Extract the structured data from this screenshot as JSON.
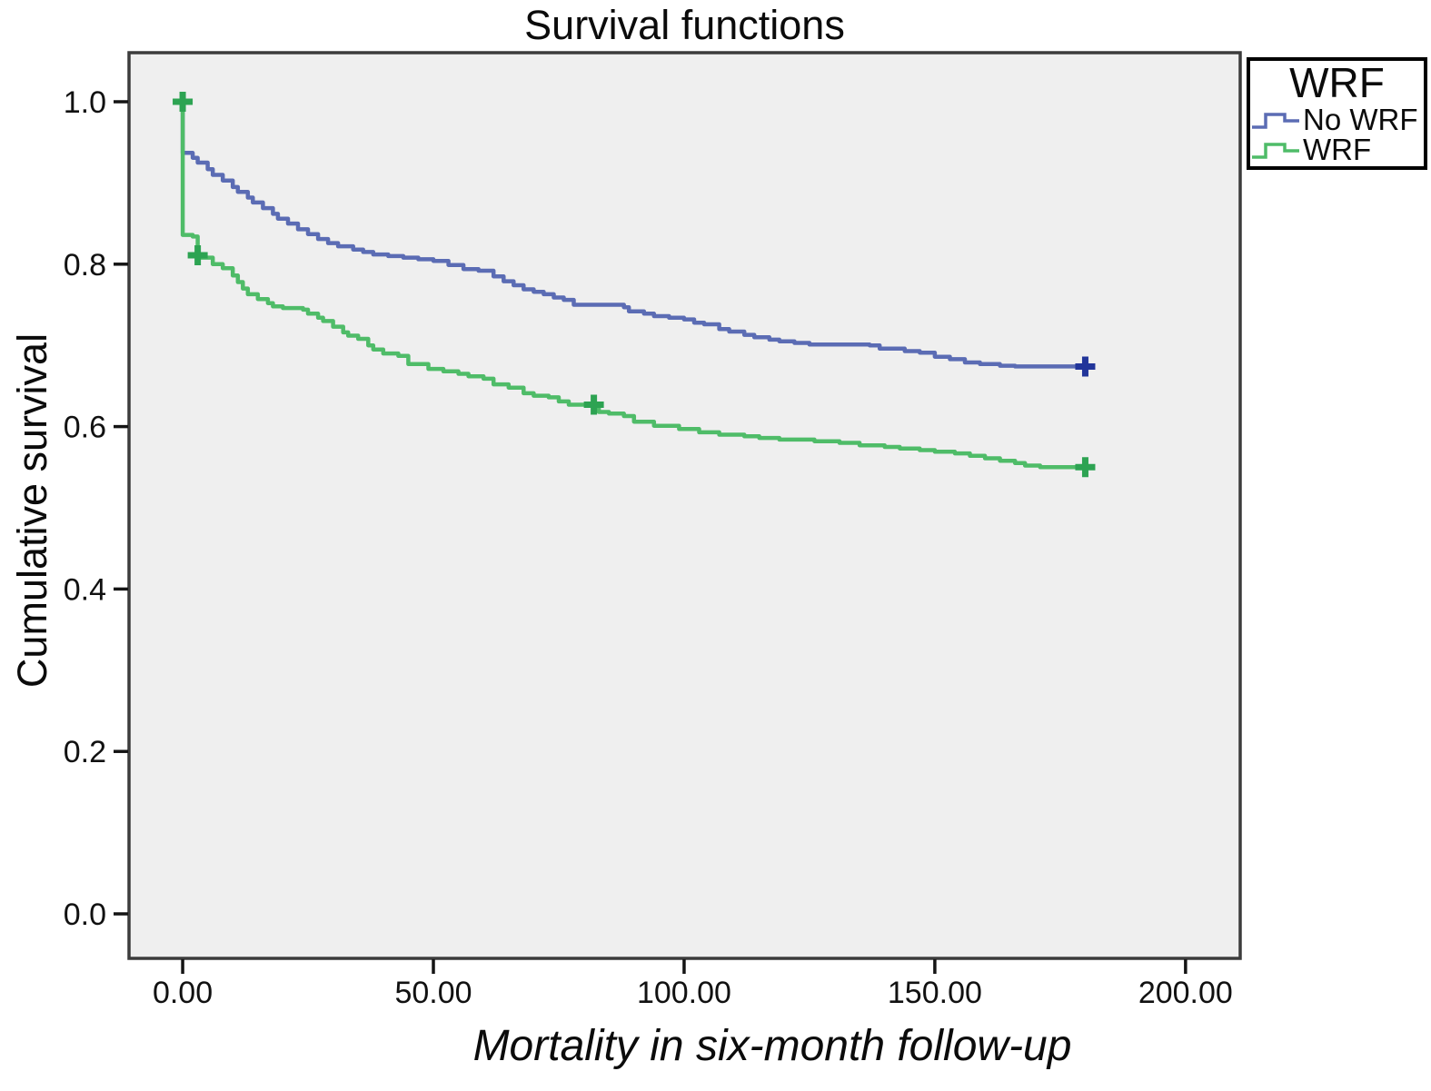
{
  "page": {
    "background": "#ffffff"
  },
  "chart_data": {
    "type": "line",
    "subtype": "kaplan-meier-step-survival",
    "title": "Survival functions",
    "xlabel": "Mortality in six-month follow-up",
    "ylabel": "Cumulative survival",
    "xlim": [
      -10.7,
      210.9
    ],
    "ylim": [
      -0.0548,
      1.0604
    ],
    "grid": false,
    "plot_background": "#efefef",
    "frame_color": "#3c3c3c",
    "tick_color": "#141414",
    "censor_marker": "+",
    "xticks": [
      {
        "value": 0,
        "label": "0.00"
      },
      {
        "value": 50,
        "label": "50.00"
      },
      {
        "value": 100,
        "label": "100.00"
      },
      {
        "value": 150,
        "label": "150.00"
      },
      {
        "value": 200,
        "label": "200.00"
      }
    ],
    "yticks": [
      {
        "value": 0.0,
        "label": "0.0"
      },
      {
        "value": 0.2,
        "label": "0.2"
      },
      {
        "value": 0.4,
        "label": "0.4"
      },
      {
        "value": 0.6,
        "label": "0.6"
      },
      {
        "value": 0.8,
        "label": "0.8"
      },
      {
        "value": 1.0,
        "label": "1.0"
      }
    ],
    "legend": {
      "title": "WRF",
      "position": "top-right-outside",
      "entries": [
        {
          "label": "No WRF",
          "color": "#5b6cb4"
        },
        {
          "label": "WRF",
          "color": "#4fbc68"
        }
      ]
    },
    "series": [
      {
        "name": "No WRF",
        "color": "#5b6cb4",
        "censor_color": "#22359a",
        "points": [
          [
            0,
            1.0
          ],
          [
            0,
            0.937
          ],
          [
            2,
            0.931
          ],
          [
            3,
            0.925
          ],
          [
            5,
            0.917
          ],
          [
            6,
            0.91
          ],
          [
            8,
            0.903
          ],
          [
            10,
            0.895
          ],
          [
            11,
            0.889
          ],
          [
            13,
            0.882
          ],
          [
            14,
            0.876
          ],
          [
            16,
            0.869
          ],
          [
            18,
            0.862
          ],
          [
            19,
            0.856
          ],
          [
            21,
            0.85
          ],
          [
            23,
            0.843
          ],
          [
            25,
            0.837
          ],
          [
            27,
            0.831
          ],
          [
            29,
            0.826
          ],
          [
            31,
            0.822
          ],
          [
            34,
            0.818
          ],
          [
            36,
            0.815
          ],
          [
            38,
            0.812
          ],
          [
            41,
            0.81
          ],
          [
            44,
            0.808
          ],
          [
            47,
            0.806
          ],
          [
            50,
            0.804
          ],
          [
            53,
            0.799
          ],
          [
            56,
            0.794
          ],
          [
            59,
            0.792
          ],
          [
            62,
            0.785
          ],
          [
            64,
            0.779
          ],
          [
            66,
            0.774
          ],
          [
            68,
            0.769
          ],
          [
            70,
            0.766
          ],
          [
            72,
            0.763
          ],
          [
            74,
            0.759
          ],
          [
            76,
            0.756
          ],
          [
            78,
            0.75
          ],
          [
            88,
            0.747
          ],
          [
            89,
            0.742
          ],
          [
            92,
            0.739
          ],
          [
            94,
            0.736
          ],
          [
            97,
            0.734
          ],
          [
            100,
            0.732
          ],
          [
            102,
            0.728
          ],
          [
            104,
            0.726
          ],
          [
            107,
            0.72
          ],
          [
            109,
            0.717
          ],
          [
            112,
            0.713
          ],
          [
            114,
            0.71
          ],
          [
            117,
            0.707
          ],
          [
            119,
            0.705
          ],
          [
            122,
            0.703
          ],
          [
            125,
            0.701
          ],
          [
            137,
            0.7
          ],
          [
            139,
            0.696
          ],
          [
            144,
            0.693
          ],
          [
            147,
            0.691
          ],
          [
            150,
            0.686
          ],
          [
            153,
            0.683
          ],
          [
            156,
            0.679
          ],
          [
            159,
            0.677
          ],
          [
            163,
            0.675
          ],
          [
            166,
            0.674
          ],
          [
            180,
            0.674
          ]
        ],
        "censors": [
          [
            180,
            0.674
          ]
        ]
      },
      {
        "name": "WRF",
        "color": "#4fbc68",
        "censor_color": "#2da352",
        "points": [
          [
            0,
            1.0
          ],
          [
            0,
            0.836
          ],
          [
            2,
            0.834
          ],
          [
            3,
            0.808
          ],
          [
            6,
            0.8
          ],
          [
            8,
            0.795
          ],
          [
            10,
            0.786
          ],
          [
            11,
            0.778
          ],
          [
            12,
            0.77
          ],
          [
            13,
            0.763
          ],
          [
            15,
            0.757
          ],
          [
            17,
            0.752
          ],
          [
            18,
            0.748
          ],
          [
            20,
            0.746
          ],
          [
            24,
            0.744
          ],
          [
            25,
            0.739
          ],
          [
            27,
            0.734
          ],
          [
            28,
            0.73
          ],
          [
            30,
            0.723
          ],
          [
            32,
            0.716
          ],
          [
            33,
            0.712
          ],
          [
            35,
            0.708
          ],
          [
            37,
            0.7
          ],
          [
            38,
            0.695
          ],
          [
            40,
            0.69
          ],
          [
            43,
            0.687
          ],
          [
            45,
            0.677
          ],
          [
            49,
            0.671
          ],
          [
            52,
            0.668
          ],
          [
            55,
            0.665
          ],
          [
            57,
            0.662
          ],
          [
            60,
            0.659
          ],
          [
            62,
            0.652
          ],
          [
            65,
            0.648
          ],
          [
            68,
            0.641
          ],
          [
            70,
            0.638
          ],
          [
            73,
            0.636
          ],
          [
            75,
            0.631
          ],
          [
            77,
            0.627
          ],
          [
            83,
            0.618
          ],
          [
            85,
            0.616
          ],
          [
            88,
            0.613
          ],
          [
            90,
            0.606
          ],
          [
            94,
            0.601
          ],
          [
            99,
            0.597
          ],
          [
            103,
            0.593
          ],
          [
            107,
            0.59
          ],
          [
            112,
            0.588
          ],
          [
            115,
            0.586
          ],
          [
            119,
            0.584
          ],
          [
            126,
            0.582
          ],
          [
            131,
            0.58
          ],
          [
            135,
            0.577
          ],
          [
            140,
            0.575
          ],
          [
            143,
            0.573
          ],
          [
            147,
            0.571
          ],
          [
            150,
            0.569
          ],
          [
            154,
            0.567
          ],
          [
            157,
            0.564
          ],
          [
            160,
            0.561
          ],
          [
            163,
            0.558
          ],
          [
            166,
            0.555
          ],
          [
            168,
            0.552
          ],
          [
            171,
            0.55
          ],
          [
            180,
            0.55
          ]
        ],
        "censors": [
          [
            0,
            1.0
          ],
          [
            3,
            0.811
          ],
          [
            82,
            0.627
          ],
          [
            180,
            0.55
          ]
        ]
      }
    ]
  }
}
